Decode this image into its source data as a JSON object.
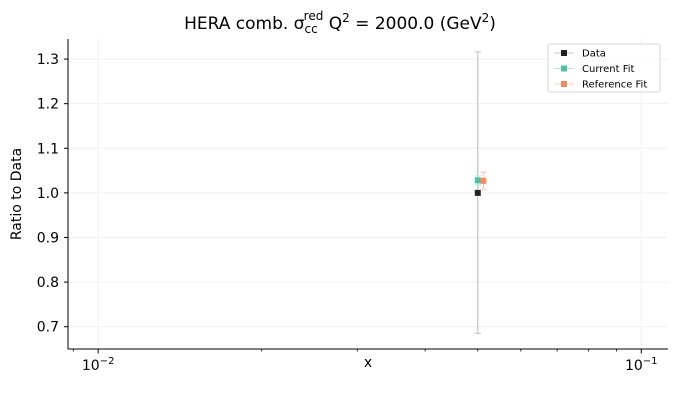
{
  "chart_data": {
    "type": "scatter",
    "title": {
      "main": "HERA comb. σ",
      "sub": "cc",
      "sup": "red",
      "q": " Q",
      "q_exp": "2",
      "eq": " = 2000.0 (GeV",
      "gev_exp": "2",
      "close": ")"
    },
    "xlabel": "x",
    "ylabel": "Ratio to Data",
    "x_scale": "log",
    "xlim": [
      0.0088,
      0.112
    ],
    "ylim": [
      0.65,
      1.345
    ],
    "x_ticks": [
      {
        "value": 0.01,
        "base": "10",
        "exp": "−2"
      },
      {
        "value": 0.1,
        "base": "10",
        "exp": "−1"
      }
    ],
    "y_ticks": [
      {
        "value": 0.7,
        "label": "0.7"
      },
      {
        "value": 0.8,
        "label": "0.8"
      },
      {
        "value": 0.9,
        "label": "0.9"
      },
      {
        "value": 1.0,
        "label": "1.0"
      },
      {
        "value": 1.1,
        "label": "1.1"
      },
      {
        "value": 1.2,
        "label": "1.2"
      },
      {
        "value": 1.3,
        "label": "1.3"
      }
    ],
    "grid": true,
    "legend_position": "top-right",
    "series": [
      {
        "name": "Data",
        "color": "#222222",
        "err_color": "#c8c8c8",
        "x": 0.05,
        "y": 1.0,
        "err_lo": 0.685,
        "err_hi": 1.316
      },
      {
        "name": "Current Fit",
        "color": "#4cc3a0",
        "err_color": "#bfe9dc",
        "x": 0.05,
        "y": 1.028,
        "err_lo": 1.018,
        "err_hi": 1.038
      },
      {
        "name": "Reference Fit",
        "color": "#f6895a",
        "err_color": "#fbd0bd",
        "x": 0.0512,
        "y": 1.027,
        "err_lo": 1.008,
        "err_hi": 1.046
      }
    ]
  }
}
